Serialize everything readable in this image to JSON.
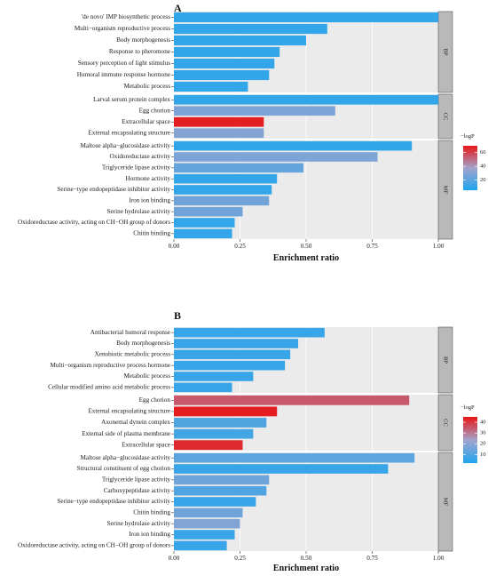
{
  "colors": {
    "low": "#1fa6ee",
    "mid": "#a3a3cc",
    "high": "#e81616",
    "panel_bg": "#ebebeb",
    "strip_bg": "#b9b9b9"
  },
  "chart_data": [
    {
      "type": "bar",
      "panel_label": "A",
      "xlabel": "Enrichment ratio",
      "xlim": [
        0,
        1.0
      ],
      "xticks": [
        "0.00",
        "0.25",
        "0.50",
        "0.75",
        "1.00"
      ],
      "legend": {
        "title": "−logP",
        "ticks": [
          20,
          40,
          60
        ],
        "range": [
          5,
          70
        ],
        "placement": "right"
      },
      "groups": [
        {
          "name": "BP",
          "bars": [
            {
              "term": "'de novo' IMP biosynthetic process",
              "ratio": 1.0,
              "logp": 10
            },
            {
              "term": "Multi−organism reproductive process",
              "ratio": 0.58,
              "logp": 10
            },
            {
              "term": "Body morphogenesis",
              "ratio": 0.5,
              "logp": 10
            },
            {
              "term": "Response to pheromone",
              "ratio": 0.4,
              "logp": 10
            },
            {
              "term": "Sensory perception of light stimulus",
              "ratio": 0.38,
              "logp": 10
            },
            {
              "term": "Humoral immune response hormone",
              "ratio": 0.36,
              "logp": 10
            },
            {
              "term": "Metabolic process",
              "ratio": 0.28,
              "logp": 10
            }
          ]
        },
        {
          "name": "CC",
          "bars": [
            {
              "term": "Larval serum protein complex",
              "ratio": 1.0,
              "logp": 10
            },
            {
              "term": "Egg chorion",
              "ratio": 0.61,
              "logp": 28
            },
            {
              "term": "Extracellular space",
              "ratio": 0.34,
              "logp": 68
            },
            {
              "term": "External encapsulating structure",
              "ratio": 0.34,
              "logp": 30
            }
          ]
        },
        {
          "name": "MF",
          "bars": [
            {
              "term": "Maltose alpha−glucosidase activity",
              "ratio": 0.9,
              "logp": 10
            },
            {
              "term": "Oxidoreductase activity",
              "ratio": 0.77,
              "logp": 28
            },
            {
              "term": "Triglyceride lipase activity",
              "ratio": 0.49,
              "logp": 22
            },
            {
              "term": "Hormone activity",
              "ratio": 0.39,
              "logp": 10
            },
            {
              "term": "Serine−type endopeptidase inhibitor activity",
              "ratio": 0.37,
              "logp": 10
            },
            {
              "term": "Iron ion binding",
              "ratio": 0.36,
              "logp": 25
            },
            {
              "term": "Serine hydrolase activity",
              "ratio": 0.26,
              "logp": 25
            },
            {
              "term": "Oxidoreductase activity, acting on CH−OH group of donors",
              "ratio": 0.23,
              "logp": 10
            },
            {
              "term": "Chitin binding",
              "ratio": 0.22,
              "logp": 10
            }
          ]
        }
      ]
    },
    {
      "type": "bar",
      "panel_label": "B",
      "xlabel": "Enrichment ratio",
      "xlim": [
        0,
        1.0
      ],
      "xticks": [
        "0.00",
        "0.25",
        "0.50",
        "0.75",
        "1.00"
      ],
      "legend": {
        "title": "−logP",
        "ticks": [
          10,
          20,
          30,
          40
        ],
        "range": [
          2,
          45
        ],
        "placement": "right"
      },
      "groups": [
        {
          "name": "BP",
          "bars": [
            {
              "term": "Antibacterial humoral response",
              "ratio": 0.57,
              "logp": 6
            },
            {
              "term": "Body morphogenesis",
              "ratio": 0.47,
              "logp": 6
            },
            {
              "term": "Xenobiotic metabolic process",
              "ratio": 0.44,
              "logp": 6
            },
            {
              "term": "Multi−organism reproductive process hormone",
              "ratio": 0.42,
              "logp": 6
            },
            {
              "term": "Metabolic process",
              "ratio": 0.3,
              "logp": 6
            },
            {
              "term": "Cellular modified amino acid metabolic process",
              "ratio": 0.22,
              "logp": 6
            }
          ]
        },
        {
          "name": "CC",
          "bars": [
            {
              "term": "Egg chorion",
              "ratio": 0.89,
              "logp": 35
            },
            {
              "term": "External encapsulating structure",
              "ratio": 0.39,
              "logp": 44
            },
            {
              "term": "Axonemal dynein complex",
              "ratio": 0.35,
              "logp": 10
            },
            {
              "term": "External side of plasma membrane",
              "ratio": 0.3,
              "logp": 8
            },
            {
              "term": "Extracellular space",
              "ratio": 0.26,
              "logp": 42
            }
          ]
        },
        {
          "name": "MF",
          "bars": [
            {
              "term": "Maltose alpha−glucosidase activity",
              "ratio": 0.91,
              "logp": 12
            },
            {
              "term": "Structural constituent of egg chorion",
              "ratio": 0.81,
              "logp": 6
            },
            {
              "term": "Triglyceride lipase activity",
              "ratio": 0.36,
              "logp": 15
            },
            {
              "term": "Carboxypeptidase activity",
              "ratio": 0.35,
              "logp": 10
            },
            {
              "term": "Serine−type endopeptidase inhibitor activity",
              "ratio": 0.31,
              "logp": 6
            },
            {
              "term": "Chitin binding",
              "ratio": 0.26,
              "logp": 15
            },
            {
              "term": "Serine hydrolase activity",
              "ratio": 0.25,
              "logp": 18
            },
            {
              "term": "Iron ion binding",
              "ratio": 0.23,
              "logp": 6
            },
            {
              "term": "Oxidoreductase activity, acting on CH−OH group of donors",
              "ratio": 0.2,
              "logp": 6
            }
          ]
        }
      ]
    }
  ]
}
